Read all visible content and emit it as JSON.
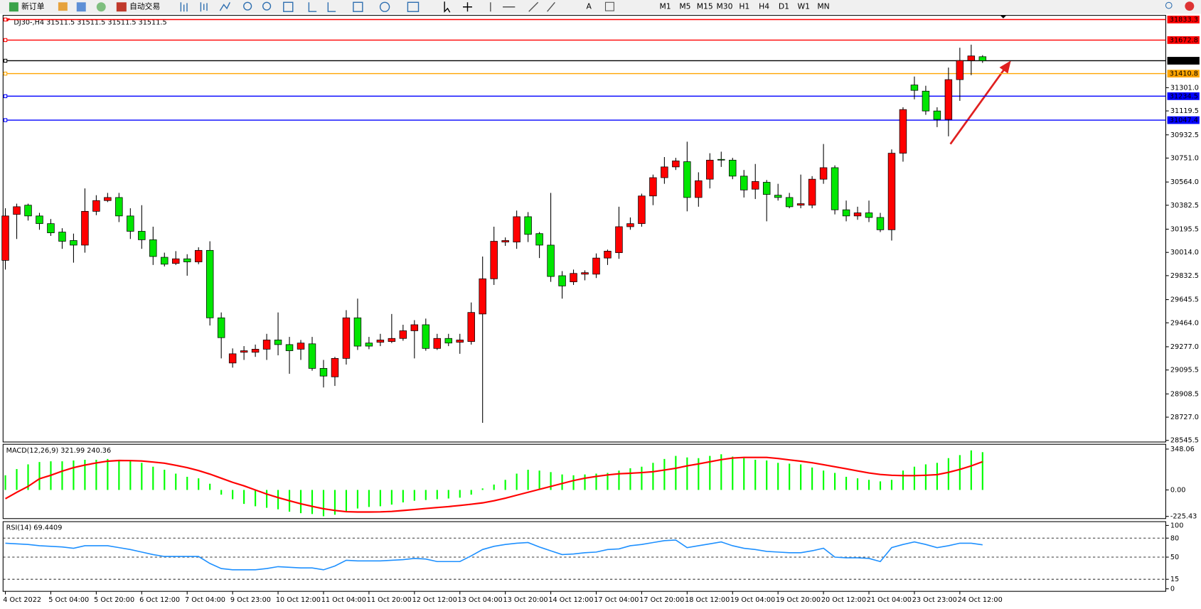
{
  "toolbar": {
    "new_order": "新订单",
    "auto_trading": "自动交易",
    "timeframes": [
      "M1",
      "M5",
      "M15",
      "M30",
      "H1",
      "H4",
      "D1",
      "W1",
      "MN"
    ]
  },
  "chart_data": [
    {
      "type": "candlestick",
      "title": "DJ30-,H4  31511.5 31511.5 31511.5 31511.5",
      "up_color": "#ff0000",
      "down_color": "#00e600",
      "categories": [
        "4 Oct 2022",
        null,
        null,
        null,
        "5 Oct 04:00",
        null,
        null,
        null,
        "5 Oct 20:00",
        null,
        null,
        null,
        "6 Oct 12:00",
        null,
        null,
        null,
        "7 Oct 04:00",
        null,
        null,
        null,
        "9 Oct 23:00",
        null,
        null,
        null,
        "10 Oct 12:00",
        null,
        null,
        null,
        "11 Oct 04:00",
        null,
        null,
        null,
        "11 Oct 20:00",
        null,
        null,
        null,
        "12 Oct 12:00",
        null,
        null,
        null,
        "13 Oct 04:00",
        null,
        null,
        null,
        "13 Oct 20:00",
        null,
        null,
        null,
        "14 Oct 12:00",
        null,
        null,
        null,
        "17 Oct 04:00",
        null,
        null,
        null,
        "17 Oct 20:00",
        null,
        null,
        null,
        "18 Oct 12:00",
        null,
        null,
        null,
        "19 Oct 04:00",
        null,
        null,
        null,
        "19 Oct 20:00",
        null,
        null,
        null,
        "20 Oct 12:00",
        null,
        null,
        null,
        "21 Oct 04:00",
        null,
        null,
        null,
        "23 Oct 23:00",
        null,
        null,
        null,
        "24 Oct 12:00",
        null,
        null
      ],
      "open": [
        29952,
        30311,
        30383,
        30299,
        30239,
        30173,
        30107,
        30071,
        30335,
        30419,
        30443,
        30299,
        30179,
        30113,
        29976,
        29928,
        29964,
        29940,
        30030,
        29503,
        29150,
        29234,
        29234,
        29258,
        29330,
        29294,
        29258,
        29300,
        29108,
        29042,
        29186,
        29503,
        29306,
        29312,
        29318,
        29342,
        29402,
        29449,
        29264,
        29342,
        29312,
        29318,
        29533,
        29808,
        30095,
        30095,
        30293,
        30161,
        30071,
        29832,
        29784,
        29844,
        29844,
        29970,
        30012,
        30215,
        30239,
        30455,
        30598,
        30682,
        30723,
        30443,
        30586,
        30741,
        30735,
        30610,
        30508,
        30562,
        30461,
        30443,
        30383,
        30383,
        30586,
        30676,
        30347,
        30299,
        30323,
        30287,
        30191,
        30789,
        31322,
        31274,
        31119,
        31053,
        31364,
        31513,
        31543
      ],
      "high": [
        30359,
        30395,
        30395,
        30323,
        30275,
        30203,
        30161,
        30514,
        30461,
        30479,
        30479,
        30359,
        30383,
        30215,
        30012,
        30024,
        30000,
        30054,
        30101,
        29545,
        29264,
        29282,
        29294,
        29378,
        29545,
        29354,
        29330,
        29354,
        29174,
        29198,
        29563,
        29653,
        29354,
        29378,
        29533,
        29449,
        29485,
        29497,
        29378,
        29378,
        29378,
        29623,
        29982,
        30215,
        30131,
        30341,
        30329,
        30173,
        30479,
        29868,
        29880,
        29874,
        30006,
        30036,
        30371,
        30287,
        30473,
        30622,
        30759,
        30753,
        30879,
        30640,
        30789,
        30801,
        30753,
        30658,
        30705,
        30580,
        30550,
        30479,
        30622,
        30610,
        30861,
        30694,
        30419,
        30371,
        30419,
        30323,
        30819,
        31148,
        31388,
        31316,
        31148,
        31458,
        31613,
        31637,
        31555
      ],
      "low": [
        29880,
        30119,
        30263,
        30191,
        30143,
        30042,
        29934,
        30012,
        30305,
        30407,
        30251,
        30119,
        30042,
        29916,
        29904,
        29916,
        29832,
        29922,
        29443,
        29186,
        29114,
        29174,
        29198,
        29174,
        29210,
        29066,
        29174,
        29090,
        28959,
        28971,
        29138,
        29252,
        29258,
        29282,
        29306,
        29324,
        29186,
        29246,
        29252,
        29282,
        29222,
        29294,
        28683,
        29760,
        30065,
        30042,
        30095,
        29970,
        29784,
        29653,
        29760,
        29796,
        29814,
        29916,
        29964,
        30191,
        30215,
        30383,
        30550,
        30658,
        30335,
        30371,
        30514,
        30682,
        30586,
        30443,
        30431,
        30257,
        30419,
        30359,
        30359,
        30359,
        30550,
        30311,
        30257,
        30269,
        30251,
        30173,
        30107,
        30723,
        31210,
        31089,
        30993,
        30921,
        31198,
        31399,
        31495
      ],
      "close": [
        30299,
        30371,
        30299,
        30239,
        30167,
        30101,
        30071,
        30335,
        30419,
        30443,
        30299,
        30179,
        30113,
        29982,
        29922,
        29964,
        29940,
        30030,
        29503,
        29348,
        29222,
        29246,
        29258,
        29330,
        29294,
        29246,
        29306,
        29108,
        29048,
        29186,
        29503,
        29282,
        29282,
        29330,
        29342,
        29402,
        29449,
        29264,
        29342,
        29306,
        29330,
        29545,
        29808,
        30101,
        30107,
        30293,
        30155,
        30071,
        29826,
        29752,
        29850,
        29856,
        29970,
        30024,
        30215,
        30239,
        30455,
        30598,
        30682,
        30729,
        30443,
        30574,
        30735,
        30735,
        30610,
        30502,
        30568,
        30467,
        30443,
        30371,
        30395,
        30586,
        30676,
        30347,
        30299,
        30323,
        30287,
        30191,
        30789,
        31130,
        31280,
        31119,
        31053,
        31364,
        31513,
        31549,
        31511.5
      ],
      "ylim": [
        28533,
        31866
      ],
      "yticks": [
        {
          "value": 31301,
          "label": "31301.0"
        },
        31119.5,
        30932.5,
        {
          "value": 30751,
          "label": "30751.0"
        },
        {
          "value": 30564,
          "label": "30564.0"
        },
        30382.5,
        30195.5,
        {
          "value": 30014,
          "label": "30014.0"
        },
        29832.5,
        29645.5,
        {
          "value": 29464,
          "label": "29464.0"
        },
        {
          "value": 29277,
          "label": "29277.0"
        },
        29095.5,
        28908.5,
        {
          "value": 28727,
          "label": "28727.0"
        },
        28545.5
      ],
      "levels": [
        {
          "value": 31833.3,
          "color": "#ff0000"
        },
        {
          "value": 31672.8,
          "color": "#ff0000"
        },
        {
          "value": 31511.5,
          "color": "#000000"
        },
        {
          "value": 31410.8,
          "color": "#ffa500"
        },
        {
          "value": 31234.5,
          "color": "#0000ff"
        },
        {
          "value": 31047.4,
          "color": "#0000ff"
        }
      ]
    },
    {
      "type": "macd",
      "title": "MACD(12,26,9) 321.99 240.36",
      "series": [
        {
          "style": "bar",
          "color": "#00ff00",
          "values": [
            125,
            178,
            218,
            238,
            244,
            244,
            251,
            257,
            257,
            264,
            257,
            251,
            231,
            198,
            172,
            139,
            112,
            99,
            53,
            -40,
            -79,
            -119,
            -139,
            -152,
            -165,
            -185,
            -198,
            -205,
            -224,
            -211,
            -185,
            -158,
            -145,
            -139,
            -125,
            -106,
            -92,
            -86,
            -79,
            -73,
            -66,
            -40,
            13,
            46,
            86,
            139,
            172,
            165,
            152,
            132,
            125,
            132,
            139,
            145,
            165,
            185,
            198,
            231,
            264,
            290,
            277,
            271,
            290,
            304,
            284,
            271,
            257,
            251,
            231,
            224,
            218,
            191,
            165,
            145,
            112,
            99,
            86,
            73,
            86,
            165,
            198,
            218,
            231,
            271,
            297,
            337,
            321.99
          ]
        },
        {
          "style": "line",
          "color": "#ff0000",
          "values": [
            -75,
            -20,
            30,
            95,
            125,
            160,
            190,
            212,
            230,
            245,
            251,
            250,
            247,
            238,
            228,
            210,
            190,
            165,
            135,
            100,
            65,
            35,
            0,
            -35,
            -65,
            -92,
            -118,
            -140,
            -160,
            -175,
            -185,
            -188,
            -188,
            -187,
            -183,
            -175,
            -167,
            -158,
            -150,
            -142,
            -132,
            -122,
            -110,
            -92,
            -70,
            -45,
            -20,
            5,
            30,
            55,
            80,
            100,
            115,
            128,
            138,
            142,
            148,
            155,
            170,
            185,
            205,
            222,
            240,
            258,
            272,
            277,
            277,
            277,
            268,
            256,
            245,
            232,
            215,
            198,
            180,
            162,
            145,
            132,
            125,
            122,
            122,
            125,
            130,
            150,
            175,
            205,
            240.36
          ]
        }
      ],
      "ylim": [
        -244,
        389
      ],
      "yticks": [
        348.06,
        {
          "value": 0,
          "label": "0.00"
        },
        -225.43
      ]
    },
    {
      "type": "line",
      "title": "RSI(14) 69.4409",
      "series": [
        {
          "color": "#1e90ff",
          "values": [
            72,
            71,
            70,
            68,
            67,
            66,
            64,
            68,
            68,
            68,
            65,
            62,
            58,
            54,
            51,
            51,
            51,
            51,
            40,
            32,
            30,
            30,
            30,
            32,
            35,
            34,
            33,
            33,
            30,
            36,
            45,
            44,
            44,
            44,
            45,
            46,
            48,
            47,
            43,
            43,
            43,
            52,
            62,
            67,
            70,
            72,
            73,
            66,
            60,
            54,
            55,
            57,
            58,
            62,
            63,
            68,
            70,
            73,
            76,
            77,
            65,
            68,
            71,
            74,
            68,
            64,
            62,
            59,
            58,
            57,
            57,
            60,
            64,
            50,
            49,
            49,
            48,
            43,
            65,
            70,
            74,
            70,
            65,
            68,
            72,
            72,
            69.4409
          ]
        }
      ],
      "ylim": [
        -4,
        106
      ],
      "yticks": [
        100,
        80,
        50,
        15,
        0
      ],
      "levels": [
        80,
        50,
        15
      ]
    }
  ]
}
